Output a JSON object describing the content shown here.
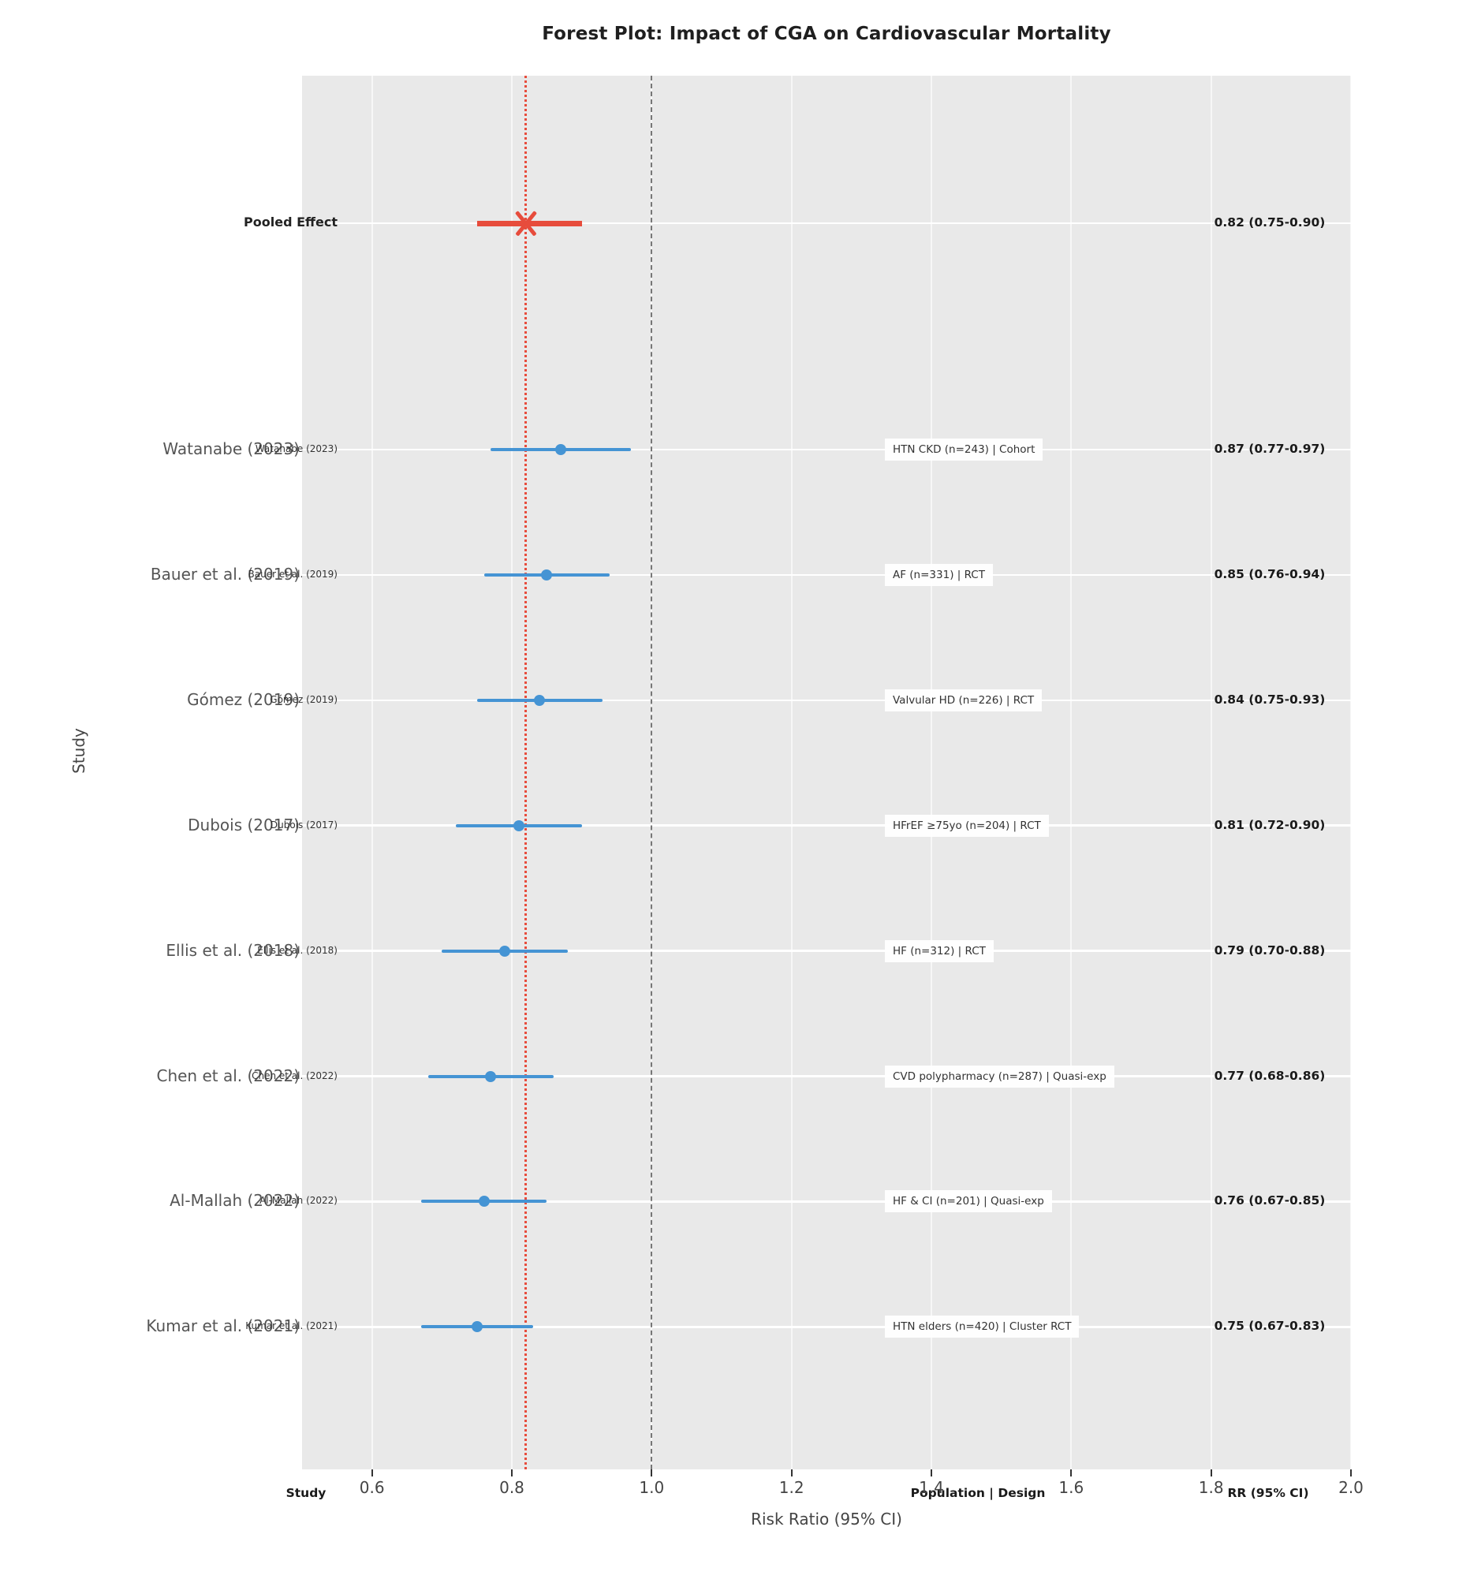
{
  "title": "Forest Plot: Impact of CGA on Cardiovascular Mortality",
  "axis": {
    "x_label": "Risk Ratio (95% CI)",
    "y_label": "Study"
  },
  "column_headers": {
    "study": "Study",
    "population": "Population | Design",
    "rr": "RR (95% CI)"
  },
  "chart_data": {
    "type": "scatter",
    "variant": "forest-plot",
    "title": "Forest Plot: Impact of CGA on Cardiovascular Mortality",
    "xlabel": "Risk Ratio (95% CI)",
    "ylabel": "Study",
    "xlim": [
      0.5,
      2.0
    ],
    "xticks": [
      "0.6",
      "0.8",
      "1.0",
      "1.2",
      "1.4",
      "1.6",
      "1.8",
      "2.0"
    ],
    "grid": true,
    "plot_background": "#e9e9e9",
    "study_color": "#4594d4",
    "pooled_color": "#e74c3c",
    "reference_lines": [
      {
        "x": 1.0,
        "style": "dashed",
        "color": "#777777",
        "meaning": "no-effect line"
      },
      {
        "x": 0.82,
        "style": "dotted",
        "color": "#e74c3c",
        "meaning": "pooled estimate"
      }
    ],
    "pooled": {
      "label": "Pooled Effect",
      "rr": 0.82,
      "ci": [
        0.75,
        0.9
      ],
      "rr_text": "0.82 (0.75-0.90)",
      "marker": "x"
    },
    "studies": [
      {
        "label": "Watanabe (2023)",
        "population": "HTN CKD (n=243) | Cohort",
        "rr": 0.87,
        "ci": [
          0.77,
          0.97
        ],
        "rr_text": "0.87 (0.77-0.97)"
      },
      {
        "label": "Bauer et al. (2019)",
        "population": "AF (n=331) | RCT",
        "rr": 0.85,
        "ci": [
          0.76,
          0.94
        ],
        "rr_text": "0.85 (0.76-0.94)"
      },
      {
        "label": "Gómez (2019)",
        "population": "Valvular HD (n=226) | RCT",
        "rr": 0.84,
        "ci": [
          0.75,
          0.93
        ],
        "rr_text": "0.84 (0.75-0.93)"
      },
      {
        "label": "Dubois (2017)",
        "population": "HFrEF ≥75yo (n=204) | RCT",
        "rr": 0.81,
        "ci": [
          0.72,
          0.9
        ],
        "rr_text": "0.81 (0.72-0.90)"
      },
      {
        "label": "Ellis et al. (2018)",
        "population": "HF (n=312) | RCT",
        "rr": 0.79,
        "ci": [
          0.7,
          0.88
        ],
        "rr_text": "0.79 (0.70-0.88)"
      },
      {
        "label": "Chen et al. (2022)",
        "population": "CVD polypharmacy (n=287) | Quasi-exp",
        "rr": 0.77,
        "ci": [
          0.68,
          0.86
        ],
        "rr_text": "0.77 (0.68-0.86)"
      },
      {
        "label": "Al-Mallah (2022)",
        "population": "HF & CI (n=201) | Quasi-exp",
        "rr": 0.76,
        "ci": [
          0.67,
          0.85
        ],
        "rr_text": "0.76 (0.67-0.85)"
      },
      {
        "label": "Kumar et al. (2021)",
        "population": "HTN elders (n=420) | Cluster RCT",
        "rr": 0.75,
        "ci": [
          0.67,
          0.83
        ],
        "rr_text": "0.75 (0.67-0.83)"
      }
    ]
  }
}
